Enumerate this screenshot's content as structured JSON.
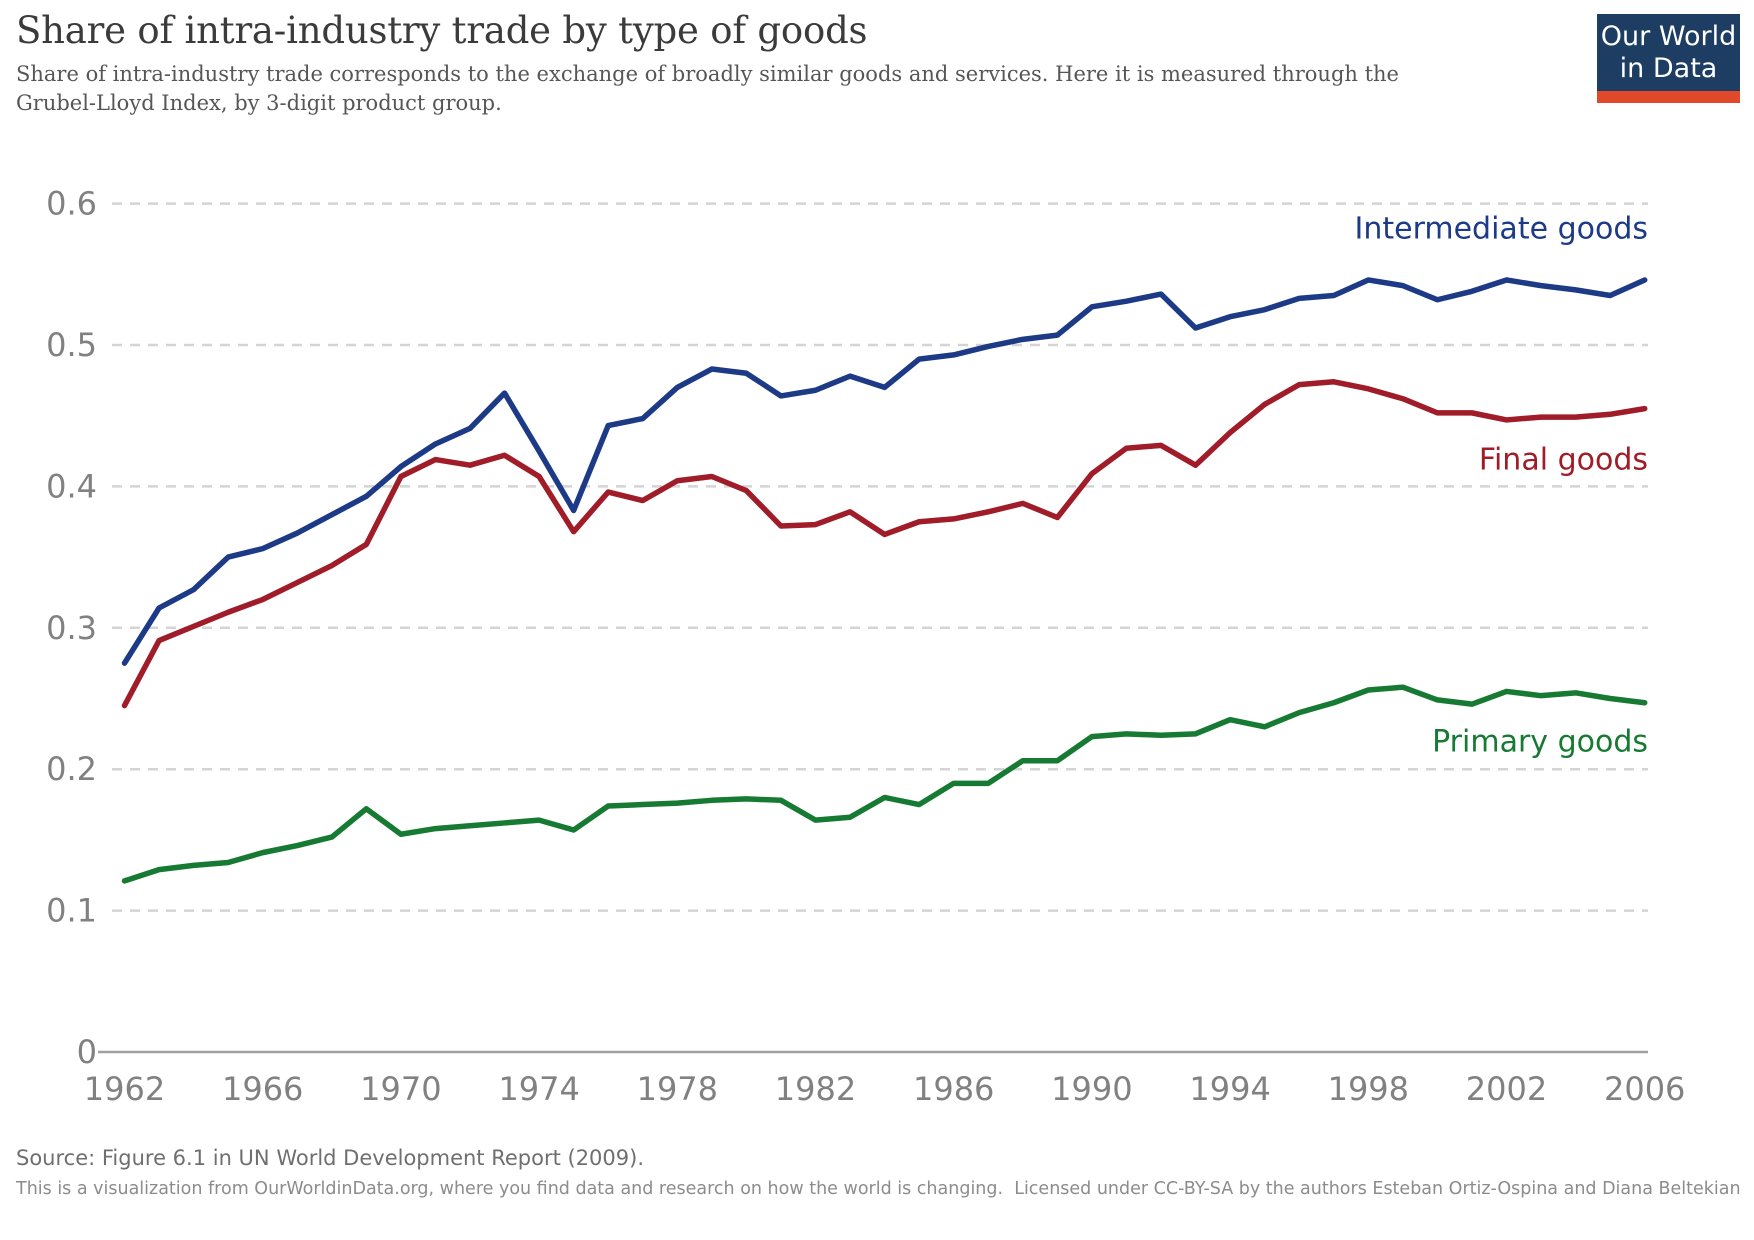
{
  "header": {
    "title": "Share of intra-industry trade by type of goods",
    "subtitle_line1": "Share of intra-industry trade corresponds to the exchange of broadly similar goods and services. Here it is measured through the",
    "subtitle_line2": "Grubel-Lloyd Index, by 3-digit product group."
  },
  "logo": {
    "line1": "Our World",
    "line2": "in Data",
    "bg_color": "#1d3d63",
    "bar_color": "#e2492b"
  },
  "chart_data": {
    "type": "line",
    "title": "Share of intra-industry trade by type of goods",
    "xlabel": "",
    "ylabel": "",
    "x": [
      1962,
      1963,
      1964,
      1965,
      1966,
      1967,
      1968,
      1969,
      1970,
      1971,
      1972,
      1973,
      1974,
      1975,
      1976,
      1977,
      1978,
      1979,
      1980,
      1981,
      1982,
      1983,
      1984,
      1985,
      1986,
      1987,
      1988,
      1989,
      1990,
      1991,
      1992,
      1993,
      1994,
      1995,
      1996,
      1997,
      1998,
      1999,
      2000,
      2001,
      2002,
      2003,
      2004,
      2005,
      2006
    ],
    "x_ticks": [
      1962,
      1966,
      1970,
      1974,
      1978,
      1982,
      1986,
      1990,
      1994,
      1998,
      2002,
      2006
    ],
    "y_ticks": [
      0,
      0.1,
      0.2,
      0.3,
      0.4,
      0.5,
      0.6
    ],
    "ylim": [
      0,
      0.62
    ],
    "grid": "horizontal dashed",
    "legend_position": "labels at line ends (right side)",
    "series": [
      {
        "name": "Intermediate goods",
        "color": "#1d3a87",
        "label_y_value": 0.582,
        "values": [
          0.275,
          0.314,
          0.327,
          0.35,
          0.356,
          0.367,
          0.38,
          0.393,
          0.414,
          0.43,
          0.441,
          0.466,
          0.425,
          0.383,
          0.443,
          0.448,
          0.47,
          0.483,
          0.48,
          0.464,
          0.468,
          0.478,
          0.47,
          0.49,
          0.493,
          0.499,
          0.504,
          0.507,
          0.527,
          0.531,
          0.536,
          0.512,
          0.52,
          0.525,
          0.533,
          0.535,
          0.546,
          0.542,
          0.532,
          0.538,
          0.546,
          0.542,
          0.539,
          0.535,
          0.546
        ]
      },
      {
        "name": "Final goods",
        "color": "#a01c28",
        "label_y_value": 0.4187,
        "values": [
          0.245,
          0.291,
          0.301,
          0.311,
          0.32,
          0.332,
          0.344,
          0.359,
          0.407,
          0.419,
          0.415,
          0.422,
          0.407,
          0.368,
          0.396,
          0.39,
          0.404,
          0.407,
          0.397,
          0.372,
          0.373,
          0.382,
          0.366,
          0.375,
          0.377,
          0.382,
          0.388,
          0.378,
          0.409,
          0.427,
          0.429,
          0.415,
          0.438,
          0.458,
          0.472,
          0.474,
          0.469,
          0.462,
          0.452,
          0.452,
          0.447,
          0.449,
          0.449,
          0.451,
          0.455
        ]
      },
      {
        "name": "Primary goods",
        "color": "#177a33",
        "label_y_value": 0.2192,
        "values": [
          0.121,
          0.129,
          0.132,
          0.134,
          0.141,
          0.146,
          0.152,
          0.172,
          0.154,
          0.158,
          0.16,
          0.162,
          0.164,
          0.157,
          0.174,
          0.175,
          0.176,
          0.178,
          0.179,
          0.178,
          0.164,
          0.166,
          0.18,
          0.175,
          0.19,
          0.19,
          0.206,
          0.206,
          0.223,
          0.225,
          0.224,
          0.225,
          0.235,
          0.23,
          0.24,
          0.247,
          0.256,
          0.258,
          0.249,
          0.246,
          0.255,
          0.252,
          0.254,
          0.25,
          0.247
        ]
      }
    ],
    "style": {
      "grid_color": "#d4d4d4",
      "axis_color": "#a0a0a0",
      "tick_label_color": "#818181"
    }
  },
  "footer": {
    "source": "Source: Figure 6.1 in UN World Development Report (2009).",
    "license": "This is a visualization from OurWorldinData.org, where you find data and research on how the world is changing.  Licensed under CC-BY-SA by the authors Esteban Ortiz-Ospina and Diana Beltekian"
  }
}
